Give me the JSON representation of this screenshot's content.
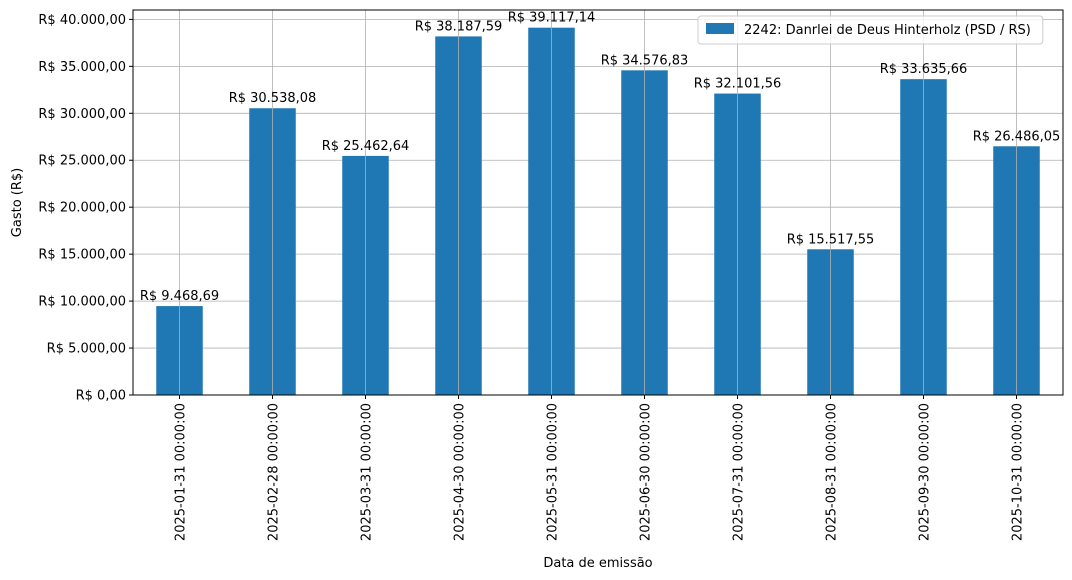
{
  "chart_data": {
    "type": "bar",
    "xlabel": "Data de emissão",
    "ylabel": "Gasto (R$)",
    "ylim": [
      0,
      41000
    ],
    "yticks": [
      0,
      5000,
      10000,
      15000,
      20000,
      25000,
      30000,
      35000,
      40000
    ],
    "ytick_labels": [
      "R$ 0,00",
      "R$ 5.000,00",
      "R$ 10.000,00",
      "R$ 15.000,00",
      "R$ 20.000,00",
      "R$ 25.000,00",
      "R$ 30.000,00",
      "R$ 35.000,00",
      "R$ 40.000,00"
    ],
    "categories": [
      "2025-01-31 00:00:00",
      "2025-02-28 00:00:00",
      "2025-03-31 00:00:00",
      "2025-04-30 00:00:00",
      "2025-05-31 00:00:00",
      "2025-06-30 00:00:00",
      "2025-07-31 00:00:00",
      "2025-08-31 00:00:00",
      "2025-09-30 00:00:00",
      "2025-10-31 00:00:00"
    ],
    "series": [
      {
        "name": "2242: Danrlei de Deus Hinterholz (PSD / RS)",
        "color": "#1f77b4",
        "values": [
          9468.69,
          30538.08,
          25462.64,
          38187.59,
          39117.14,
          34576.83,
          32101.56,
          15517.55,
          33635.66,
          26486.05
        ],
        "labels": [
          "R$ 9.468,69",
          "R$ 30.538,08",
          "R$ 25.462,64",
          "R$ 38.187,59",
          "R$ 39.117,14",
          "R$ 34.576,83",
          "R$ 32.101,56",
          "R$ 15.517,55",
          "R$ 33.635,66",
          "R$ 26.486,05"
        ]
      }
    ],
    "grid": true,
    "legend_position": "top-right"
  }
}
